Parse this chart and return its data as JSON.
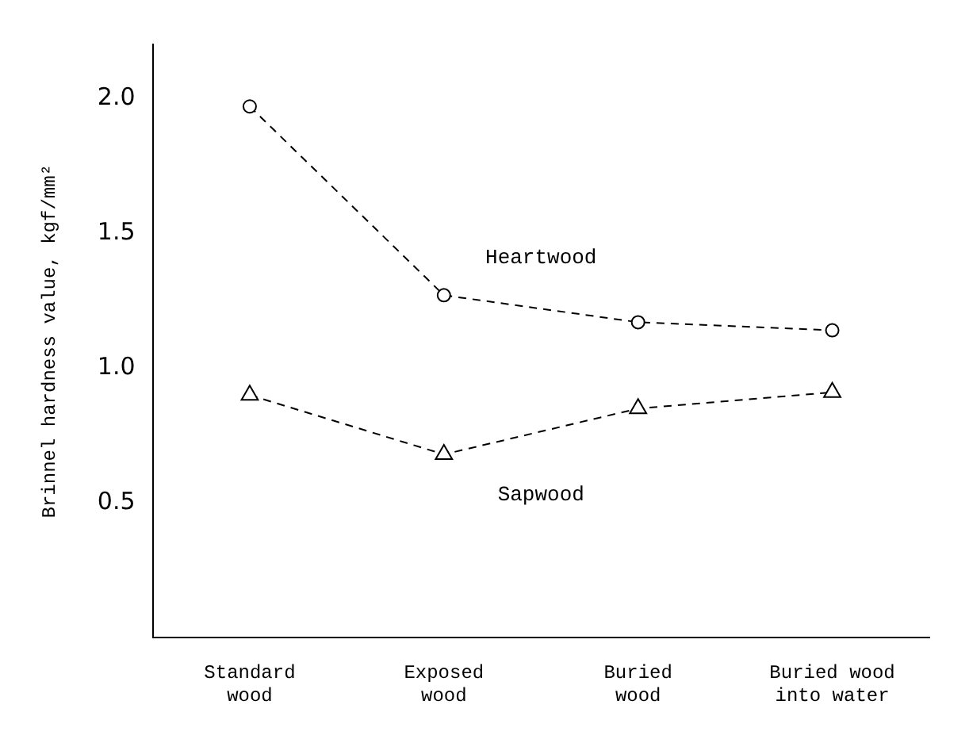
{
  "chart_data": {
    "type": "line",
    "ylabel": "Brinnel hardness value, kgf/mm²",
    "categories": [
      "Standard\nwood",
      "Exposed\nwood",
      "Buried\nwood",
      "Buried wood\ninto water"
    ],
    "series": [
      {
        "name": "Heartwood",
        "color": "#000000",
        "marker": "circle",
        "values": [
          1.97,
          1.27,
          1.17,
          1.14
        ]
      },
      {
        "name": "Sapwood",
        "color": "#000000",
        "marker": "triangle",
        "values": [
          0.9,
          0.68,
          0.85,
          0.91
        ]
      }
    ],
    "ylim": [
      0,
      2.2
    ],
    "yticks": [
      {
        "value": 0.5,
        "label": "0.5"
      },
      {
        "value": 1,
        "label": "1.0"
      },
      {
        "value": 1.5,
        "label": "1.5"
      },
      {
        "value": 2,
        "label": "2.0"
      }
    ],
    "grid": false,
    "legend": false,
    "line_style": "dashed"
  }
}
